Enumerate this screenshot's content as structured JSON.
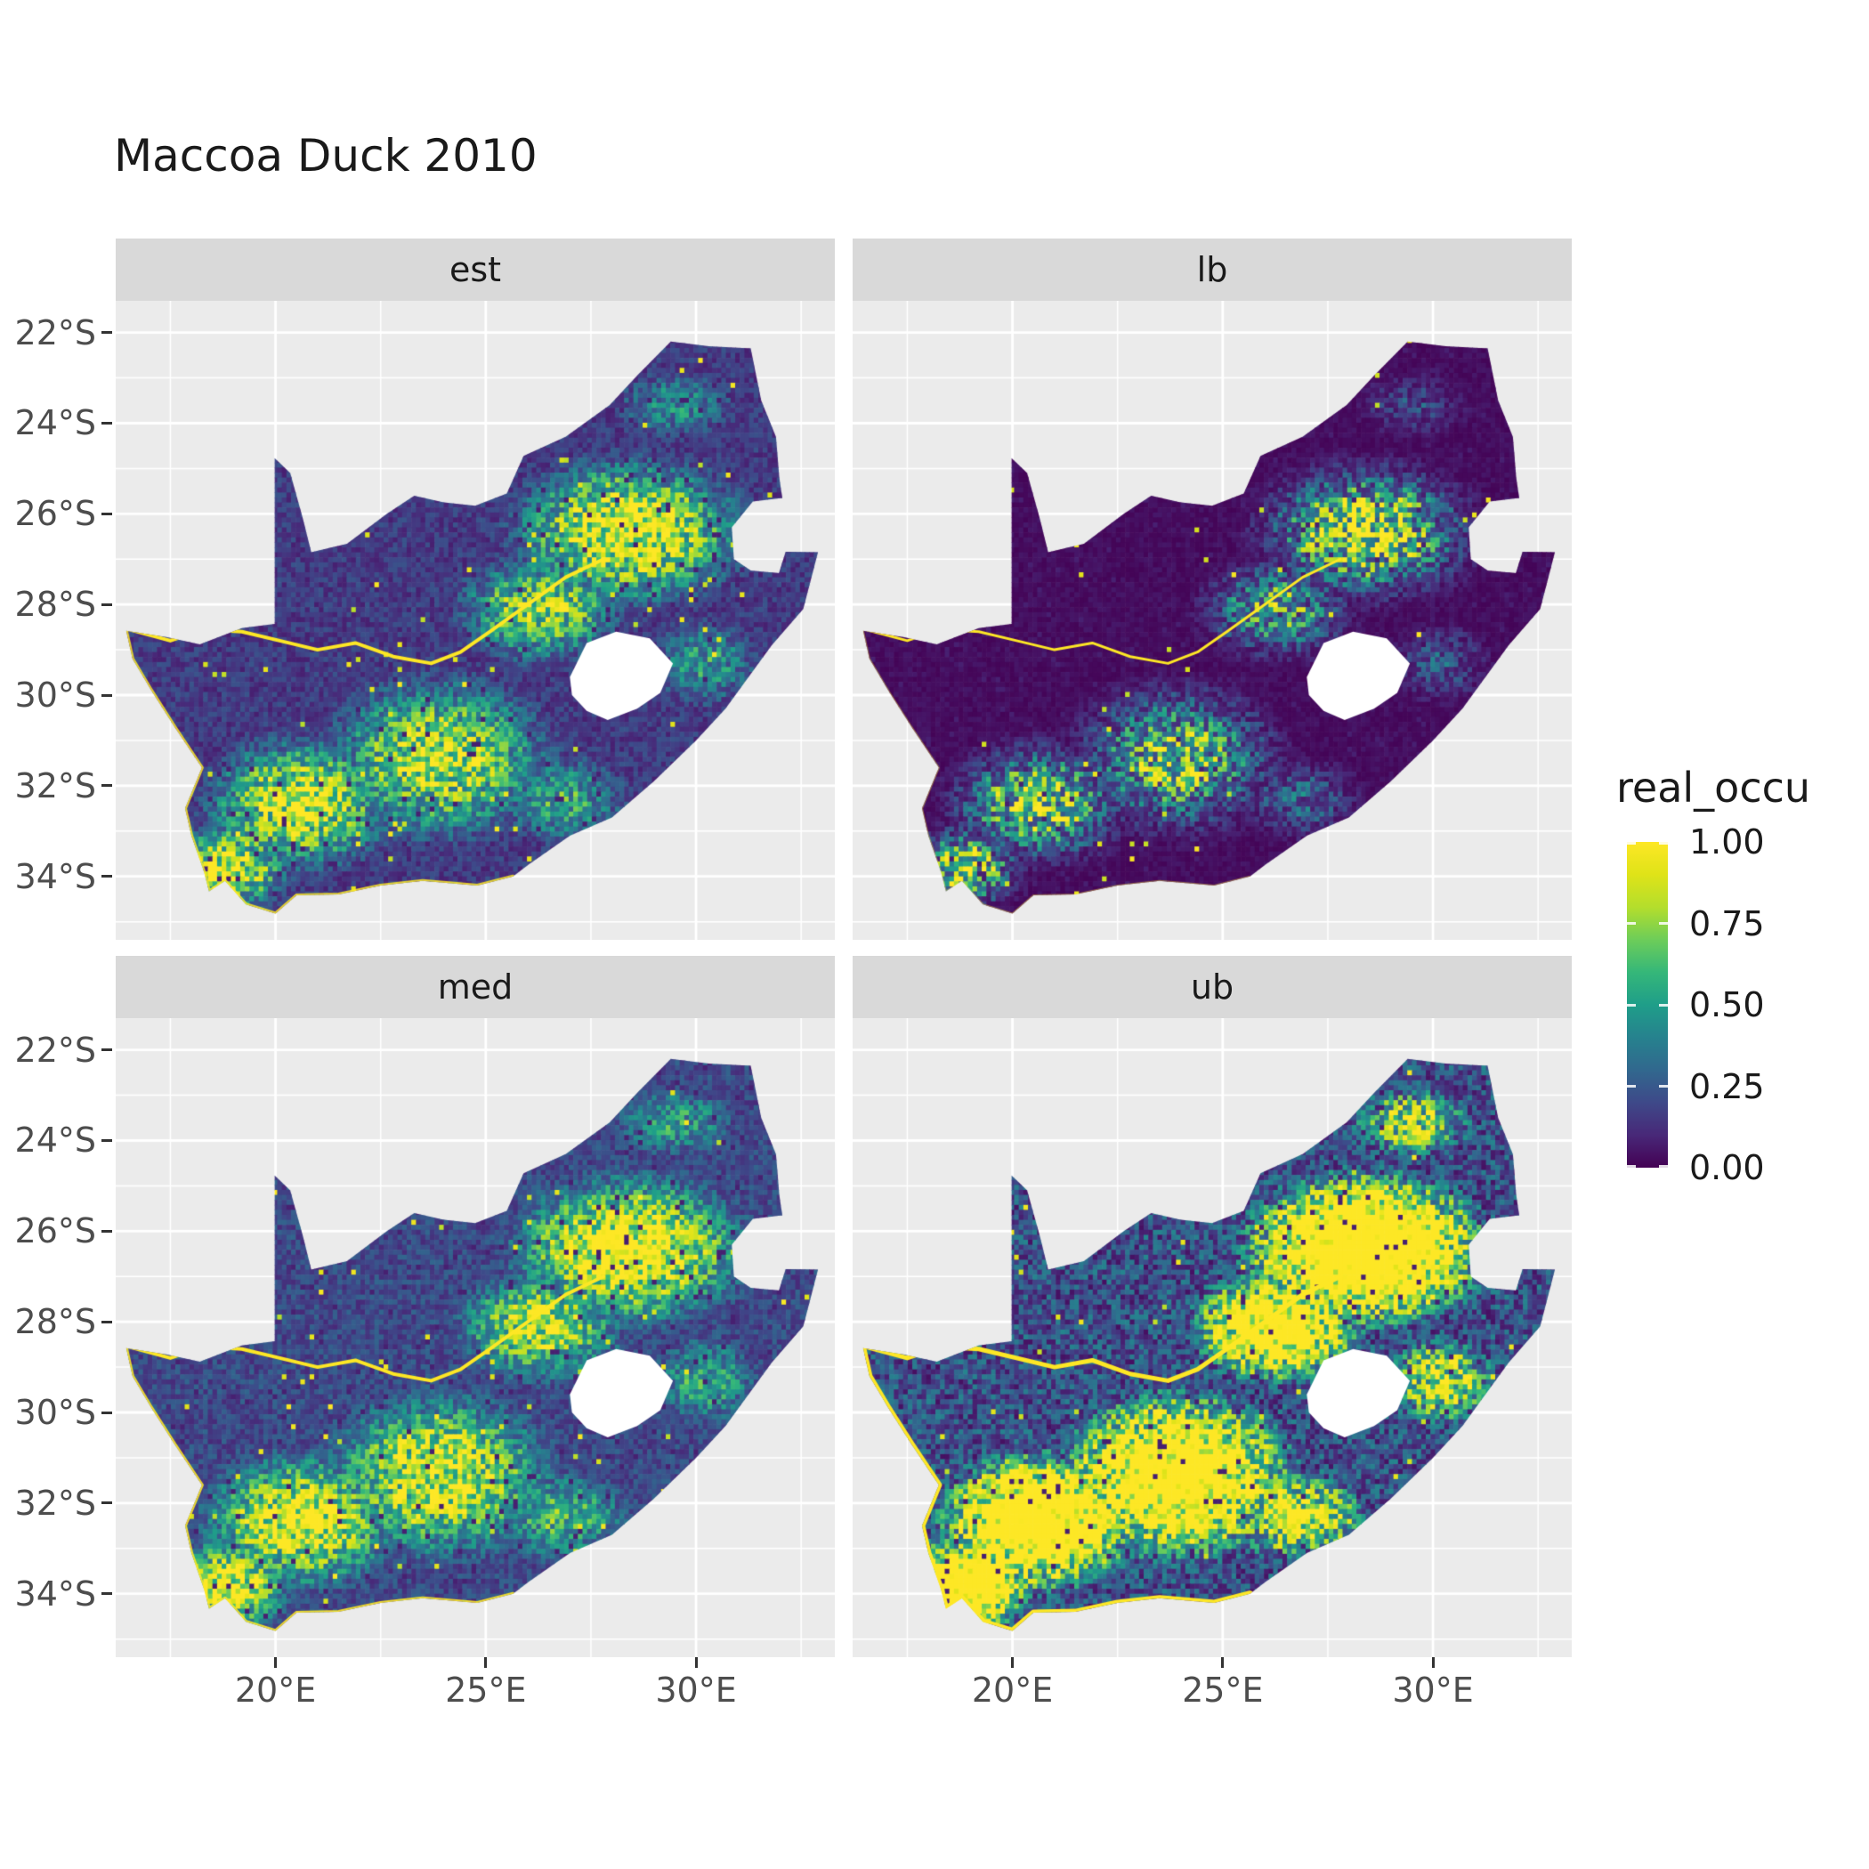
{
  "figure": {
    "title": "Maccoa Duck 2010"
  },
  "colors": {
    "background": "#FFFFFF",
    "panel_background": "#EBEBEB",
    "strip_background": "#D9D9D9",
    "gridline": "#FFFFFF",
    "axis_text": "#4D4D4D",
    "title_text": "#1A1A1A",
    "hole_fill": "#FFFFFF",
    "river_highlight": "#FDE725"
  },
  "chart_data": {
    "type": "heatmap",
    "title": "Maccoa Duck 2010",
    "region": "South Africa occupancy raster, faceted by estimate type",
    "facets": [
      {
        "id": "est",
        "label": "est"
      },
      {
        "id": "lb",
        "label": "lb"
      },
      {
        "id": "med",
        "label": "med"
      },
      {
        "id": "ub",
        "label": "ub"
      }
    ],
    "x": {
      "label": "",
      "range_lon": [
        16.2,
        33.3
      ],
      "ticks": [
        {
          "label": "20°E",
          "lon": 20
        },
        {
          "label": "25°E",
          "lon": 25
        },
        {
          "label": "30°E",
          "lon": 30
        }
      ],
      "minor_lon": [
        17.5,
        22.5,
        27.5,
        32.5
      ]
    },
    "y": {
      "label": "",
      "range_lat": [
        -21.3,
        -35.4
      ],
      "ticks": [
        {
          "label": "22°S",
          "lat": -22
        },
        {
          "label": "24°S",
          "lat": -24
        },
        {
          "label": "26°S",
          "lat": -26
        },
        {
          "label": "28°S",
          "lat": -28
        },
        {
          "label": "30°S",
          "lat": -30
        },
        {
          "label": "32°S",
          "lat": -32
        },
        {
          "label": "34°S",
          "lat": -34
        }
      ],
      "minor_lat": [
        -23,
        -25,
        -27,
        -29,
        -31,
        -33,
        -35
      ]
    },
    "legend": {
      "title": "real_occu",
      "ticks": [
        {
          "label": "1.00",
          "value": 1.0
        },
        {
          "label": "0.75",
          "value": 0.75
        },
        {
          "label": "0.50",
          "value": 0.5
        },
        {
          "label": "0.25",
          "value": 0.25
        },
        {
          "label": "0.00",
          "value": 0.0
        }
      ]
    },
    "value_range": [
      0,
      1
    ],
    "palette": {
      "name": "viridis",
      "stops": [
        [
          0.0,
          "#440154"
        ],
        [
          0.1,
          "#482878"
        ],
        [
          0.2,
          "#3E4989"
        ],
        [
          0.3,
          "#31688E"
        ],
        [
          0.4,
          "#26828E"
        ],
        [
          0.5,
          "#1F9E89"
        ],
        [
          0.6,
          "#35B779"
        ],
        [
          0.7,
          "#6DCD59"
        ],
        [
          0.8,
          "#B4DE2C"
        ],
        [
          0.9,
          "#DFE318"
        ],
        [
          1.0,
          "#FDE725"
        ]
      ]
    },
    "cell_deg": 0.11,
    "base_floor": 0.17,
    "density_blobs": [
      [
        28.4,
        -26.4,
        2.4,
        1.4,
        1.05
      ],
      [
        26.3,
        -28.1,
        1.8,
        1.1,
        0.8
      ],
      [
        20.6,
        -32.4,
        2.0,
        1.3,
        0.95
      ],
      [
        23.9,
        -31.4,
        2.4,
        1.6,
        0.88
      ],
      [
        18.9,
        -33.8,
        1.3,
        0.9,
        0.95
      ],
      [
        26.8,
        -32.3,
        1.6,
        1.0,
        0.55
      ],
      [
        30.2,
        -29.3,
        1.3,
        1.0,
        0.5
      ],
      [
        29.5,
        -23.6,
        1.5,
        0.8,
        0.45
      ]
    ],
    "facet_styles": {
      "est": {
        "gain": 1.0,
        "gamma": 1.05,
        "lift": 0.0,
        "seed": 11,
        "river_width": 4,
        "rim_width": 4,
        "rim_alpha": 0.85
      },
      "lb": {
        "gain": 0.82,
        "gamma": 1.9,
        "lift": 0.0,
        "seed": 23,
        "river_width": 3,
        "rim_width": 2,
        "rim_alpha": 0.4
      },
      "med": {
        "gain": 1.08,
        "gamma": 0.95,
        "lift": 0.0,
        "seed": 37,
        "river_width": 4,
        "rim_width": 4,
        "rim_alpha": 0.9
      },
      "ub": {
        "gain": 2.2,
        "gamma": 1.0,
        "lift": -0.15,
        "seed": 51,
        "river_width": 5,
        "rim_width": 7,
        "rim_alpha": 1.0
      }
    },
    "boundary_lonlat": [
      [
        16.45,
        -28.58
      ],
      [
        17.4,
        -28.72
      ],
      [
        18.2,
        -28.88
      ],
      [
        19.2,
        -28.52
      ],
      [
        19.98,
        -28.43
      ],
      [
        19.98,
        -24.77
      ],
      [
        20.35,
        -25.1
      ],
      [
        20.65,
        -26.1
      ],
      [
        20.85,
        -26.85
      ],
      [
        21.7,
        -26.66
      ],
      [
        22.65,
        -26.0
      ],
      [
        23.3,
        -25.6
      ],
      [
        24.0,
        -25.75
      ],
      [
        24.75,
        -25.82
      ],
      [
        25.5,
        -25.55
      ],
      [
        25.9,
        -24.72
      ],
      [
        26.9,
        -24.3
      ],
      [
        27.95,
        -23.6
      ],
      [
        28.6,
        -22.95
      ],
      [
        29.4,
        -22.2
      ],
      [
        30.3,
        -22.3
      ],
      [
        31.3,
        -22.35
      ],
      [
        31.55,
        -23.5
      ],
      [
        31.9,
        -24.3
      ],
      [
        31.98,
        -25.2
      ],
      [
        32.05,
        -25.65
      ],
      [
        31.35,
        -25.73
      ],
      [
        30.85,
        -26.3
      ],
      [
        30.9,
        -27.0
      ],
      [
        31.3,
        -27.25
      ],
      [
        31.97,
        -27.31
      ],
      [
        32.13,
        -26.84
      ],
      [
        32.9,
        -26.85
      ],
      [
        32.55,
        -28.1
      ],
      [
        31.8,
        -28.9
      ],
      [
        30.7,
        -30.3
      ],
      [
        30.0,
        -31.0
      ],
      [
        29.0,
        -31.9
      ],
      [
        28.0,
        -32.7
      ],
      [
        27.0,
        -33.1
      ],
      [
        26.0,
        -33.75
      ],
      [
        25.65,
        -34.0
      ],
      [
        24.8,
        -34.2
      ],
      [
        23.5,
        -34.1
      ],
      [
        22.5,
        -34.2
      ],
      [
        21.5,
        -34.4
      ],
      [
        20.5,
        -34.42
      ],
      [
        20.0,
        -34.82
      ],
      [
        19.3,
        -34.62
      ],
      [
        18.8,
        -34.1
      ],
      [
        18.42,
        -34.33
      ],
      [
        18.3,
        -33.9
      ],
      [
        18.0,
        -33.1
      ],
      [
        17.85,
        -32.5
      ],
      [
        18.25,
        -31.6
      ],
      [
        17.6,
        -30.7
      ],
      [
        17.05,
        -29.9
      ],
      [
        16.6,
        -29.2
      ]
    ],
    "lesotho_hole_lonlat": [
      [
        27.0,
        -29.6
      ],
      [
        27.4,
        -28.85
      ],
      [
        28.1,
        -28.6
      ],
      [
        28.9,
        -28.75
      ],
      [
        29.45,
        -29.3
      ],
      [
        29.15,
        -29.95
      ],
      [
        28.6,
        -30.3
      ],
      [
        27.9,
        -30.55
      ],
      [
        27.4,
        -30.35
      ],
      [
        27.05,
        -30.0
      ]
    ],
    "river_lonlat": [
      [
        16.5,
        -28.55
      ],
      [
        17.5,
        -28.8
      ],
      [
        18.3,
        -28.55
      ],
      [
        19.2,
        -28.6
      ],
      [
        20.1,
        -28.8
      ],
      [
        21.0,
        -29.0
      ],
      [
        21.9,
        -28.85
      ],
      [
        22.8,
        -29.15
      ],
      [
        23.7,
        -29.3
      ],
      [
        24.4,
        -29.05
      ],
      [
        25.1,
        -28.6
      ],
      [
        26.0,
        -28.0
      ],
      [
        26.9,
        -27.4
      ],
      [
        27.8,
        -27.0
      ]
    ],
    "coast_rim_lonlat": [
      [
        16.45,
        -28.58
      ],
      [
        16.6,
        -29.2
      ],
      [
        17.05,
        -29.9
      ],
      [
        17.6,
        -30.7
      ],
      [
        18.25,
        -31.6
      ],
      [
        17.85,
        -32.5
      ],
      [
        18.0,
        -33.1
      ],
      [
        18.3,
        -33.9
      ],
      [
        18.42,
        -34.33
      ],
      [
        18.8,
        -34.1
      ],
      [
        19.3,
        -34.62
      ],
      [
        20.0,
        -34.82
      ],
      [
        20.5,
        -34.42
      ],
      [
        21.5,
        -34.4
      ],
      [
        22.5,
        -34.2
      ],
      [
        23.5,
        -34.1
      ],
      [
        24.8,
        -34.2
      ],
      [
        25.65,
        -34.0
      ]
    ]
  }
}
